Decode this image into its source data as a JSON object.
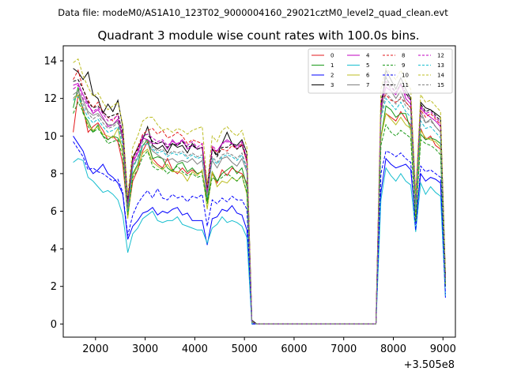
{
  "chart_data": {
    "type": "line",
    "suptitle": "Data file: modeM0/AS1A10_123T02_9000004160_29021cztM0_level2_quad_clean.evt",
    "title": "Quadrant 3 module wise count rates with 100.0s bins.",
    "xlabel": "",
    "ylabel": "",
    "x_offset_label": "+3.505e8",
    "xlim": [
      1350,
      9250
    ],
    "ylim": [
      -0.7,
      14.8
    ],
    "xticks": [
      2000,
      3000,
      4000,
      5000,
      6000,
      7000,
      8000,
      9000
    ],
    "yticks": [
      0,
      2,
      4,
      6,
      8,
      10,
      12,
      14
    ],
    "legend_position": "top-right",
    "x": [
      1550,
      1650,
      1750,
      1850,
      1950,
      2050,
      2150,
      2250,
      2350,
      2450,
      2550,
      2650,
      2750,
      2850,
      2950,
      3050,
      3150,
      3250,
      3350,
      3450,
      3550,
      3650,
      3750,
      3850,
      3950,
      4050,
      4150,
      4250,
      4350,
      4450,
      4550,
      4650,
      4750,
      4850,
      4950,
      5050,
      5150,
      5250,
      7550,
      7650,
      7750,
      7850,
      7950,
      8050,
      8150,
      8250,
      8350,
      8450,
      8550,
      8650,
      8750,
      8850,
      8950,
      9050
    ],
    "series": [
      {
        "name": "0",
        "color": "#e31a1c",
        "dash": "solid",
        "values": [
          10.2,
          12.2,
          11.5,
          10.2,
          10.5,
          10.7,
          10.3,
          9.8,
          10.0,
          9.7,
          8.5,
          5.8,
          7.6,
          8.2,
          9.2,
          9.7,
          8.8,
          8.5,
          8.3,
          8.8,
          8.2,
          8.0,
          8.3,
          8.0,
          8.2,
          8.0,
          8.1,
          6.6,
          8.0,
          7.5,
          8.2,
          7.9,
          8.3,
          8.1,
          8.0,
          7.5,
          0.1,
          0.0,
          0.0,
          0.0,
          10.0,
          11.2,
          11.0,
          10.8,
          11.3,
          10.9,
          10.6,
          5.6,
          10.4,
          9.8,
          10.0,
          9.5,
          9.3,
          2.0
        ]
      },
      {
        "name": "1",
        "color": "#1a9a1a",
        "dash": "solid",
        "values": [
          11.5,
          12.6,
          11.2,
          10.8,
          10.2,
          10.6,
          10.0,
          9.8,
          10.0,
          9.9,
          9.4,
          5.9,
          8.0,
          8.5,
          9.5,
          9.8,
          8.8,
          8.9,
          8.8,
          8.3,
          8.1,
          8.5,
          8.6,
          8.1,
          8.3,
          8.0,
          8.1,
          6.5,
          8.1,
          7.6,
          8.0,
          8.2,
          8.4,
          8.0,
          8.3,
          7.3,
          0.1,
          0.0,
          0.0,
          0.0,
          9.9,
          11.6,
          11.4,
          11.0,
          11.2,
          11.2,
          10.3,
          5.6,
          10.1,
          9.8,
          9.9,
          9.8,
          9.6,
          2.0
        ]
      },
      {
        "name": "2",
        "color": "#0000ff",
        "dash": "solid",
        "values": [
          10.0,
          9.6,
          9.2,
          8.4,
          8.0,
          8.2,
          8.5,
          8.0,
          7.8,
          7.5,
          6.9,
          4.5,
          5.2,
          5.5,
          5.9,
          6.0,
          6.2,
          5.8,
          6.0,
          5.9,
          6.1,
          6.2,
          5.8,
          5.9,
          5.5,
          5.5,
          5.5,
          4.2,
          5.6,
          5.7,
          6.1,
          6.0,
          6.3,
          5.9,
          5.8,
          5.0,
          0.0,
          0.0,
          0.0,
          0.0,
          7.0,
          8.8,
          8.5,
          8.3,
          8.4,
          8.5,
          8.2,
          5.4,
          8.0,
          7.6,
          7.8,
          7.7,
          7.5,
          1.4
        ]
      },
      {
        "name": "3",
        "color": "#000000",
        "dash": "solid",
        "values": [
          13.6,
          13.4,
          13.0,
          13.4,
          12.2,
          12.0,
          11.2,
          11.7,
          11.3,
          11.9,
          10.5,
          6.6,
          8.8,
          9.4,
          9.8,
          10.5,
          9.5,
          9.3,
          9.5,
          9.1,
          9.6,
          9.4,
          9.5,
          9.1,
          9.6,
          9.3,
          9.4,
          7.3,
          9.3,
          9.0,
          9.6,
          10.2,
          9.6,
          9.5,
          9.8,
          9.1,
          0.2,
          0.0,
          0.0,
          0.0,
          11.4,
          13.5,
          13.0,
          12.5,
          13.1,
          12.5,
          12.0,
          6.7,
          11.8,
          11.5,
          11.4,
          11.2,
          11.0,
          2.5
        ]
      },
      {
        "name": "4",
        "color": "#c000c0",
        "dash": "solid",
        "values": [
          12.7,
          12.8,
          12.2,
          11.7,
          11.2,
          11.4,
          11.0,
          10.5,
          10.6,
          10.9,
          9.9,
          6.4,
          8.6,
          9.1,
          9.9,
          9.8,
          9.6,
          9.6,
          9.7,
          9.3,
          9.8,
          9.5,
          9.8,
          9.3,
          9.5,
          9.3,
          9.4,
          7.0,
          9.3,
          9.2,
          9.6,
          9.8,
          9.6,
          9.3,
          9.6,
          8.6,
          0.1,
          0.0,
          0.0,
          0.0,
          11.5,
          12.6,
          12.4,
          12.2,
          12.8,
          12.0,
          11.7,
          6.6,
          11.5,
          11.2,
          11.0,
          10.8,
          10.5,
          2.4
        ]
      },
      {
        "name": "5",
        "color": "#17becf",
        "dash": "solid",
        "values": [
          8.6,
          8.8,
          8.7,
          7.8,
          7.6,
          7.3,
          7.0,
          7.1,
          6.9,
          6.6,
          5.8,
          3.8,
          4.8,
          5.1,
          5.6,
          5.8,
          6.0,
          5.5,
          5.4,
          5.5,
          5.5,
          5.7,
          5.3,
          5.2,
          5.1,
          5.0,
          5.0,
          4.3,
          5.1,
          5.3,
          5.7,
          5.4,
          5.5,
          5.4,
          5.2,
          4.6,
          0.0,
          0.0,
          0.0,
          0.0,
          6.6,
          8.3,
          7.9,
          7.6,
          8.0,
          7.6,
          7.4,
          4.9,
          7.5,
          6.9,
          7.3,
          7.0,
          6.8,
          1.5
        ]
      },
      {
        "name": "6",
        "color": "#bcbd22",
        "dash": "solid",
        "values": [
          11.9,
          12.2,
          11.3,
          10.6,
          10.3,
          10.5,
          10.1,
          10.0,
          9.9,
          10.4,
          9.1,
          5.6,
          7.9,
          8.4,
          9.1,
          9.3,
          8.6,
          8.4,
          8.2,
          8.5,
          8.1,
          8.1,
          8.0,
          7.6,
          8.1,
          7.9,
          8.2,
          6.1,
          8.1,
          7.3,
          7.6,
          7.5,
          7.8,
          7.6,
          7.9,
          6.9,
          0.1,
          0.0,
          0.0,
          0.0,
          9.9,
          11.2,
          10.9,
          10.6,
          11.0,
          10.6,
          10.4,
          5.5,
          10.3,
          9.9,
          9.8,
          9.7,
          9.4,
          2.0
        ]
      },
      {
        "name": "7",
        "color": "#7f7f7f",
        "dash": "solid",
        "values": [
          12.2,
          12.4,
          11.9,
          11.3,
          11.1,
          11.2,
          10.9,
          10.6,
          10.6,
          10.8,
          9.8,
          6.1,
          8.4,
          8.8,
          9.5,
          9.6,
          9.2,
          9.0,
          8.8,
          8.7,
          8.8,
          8.6,
          8.7,
          8.6,
          8.8,
          8.5,
          8.7,
          6.9,
          8.7,
          8.3,
          8.8,
          8.9,
          8.6,
          8.4,
          8.8,
          8.1,
          0.1,
          0.0,
          0.0,
          0.0,
          11.0,
          13.2,
          12.4,
          12.0,
          12.4,
          11.8,
          11.5,
          6.2,
          11.3,
          10.7,
          10.9,
          10.5,
          10.2,
          2.3
        ]
      },
      {
        "name": "8",
        "color": "#e31a1c",
        "dash": "dashed",
        "values": [
          13.0,
          13.5,
          12.5,
          11.9,
          11.5,
          11.8,
          11.3,
          11.0,
          10.8,
          11.2,
          10.1,
          6.3,
          8.8,
          9.4,
          10.1,
          10.3,
          10.4,
          10.1,
          10.3,
          9.9,
          10.0,
          10.2,
          10.0,
          9.6,
          9.8,
          9.7,
          9.6,
          7.1,
          9.4,
          9.1,
          9.3,
          9.2,
          9.5,
          9.3,
          9.6,
          8.6,
          0.1,
          0.0,
          0.0,
          0.0,
          11.9,
          12.2,
          11.9,
          11.8,
          12.0,
          11.8,
          11.5,
          6.4,
          11.4,
          11.0,
          11.2,
          10.9,
          10.6,
          2.4
        ]
      },
      {
        "name": "9",
        "color": "#1a9a1a",
        "dash": "dashed",
        "values": [
          11.2,
          11.8,
          11.3,
          10.5,
          10.2,
          10.4,
          10.0,
          9.6,
          9.7,
          9.8,
          8.9,
          5.8,
          7.8,
          8.2,
          8.9,
          9.2,
          8.4,
          8.2,
          8.3,
          8.0,
          8.2,
          8.4,
          8.1,
          7.9,
          8.0,
          7.8,
          7.9,
          6.4,
          7.8,
          7.6,
          7.8,
          8.0,
          7.8,
          7.6,
          7.9,
          7.0,
          0.1,
          0.0,
          0.0,
          0.0,
          9.5,
          10.6,
          10.2,
          10.0,
          10.3,
          10.1,
          9.9,
          5.4,
          9.8,
          9.6,
          9.5,
          9.3,
          9.0,
          2.0
        ]
      },
      {
        "name": "10",
        "color": "#0000ff",
        "dash": "dashed",
        "values": [
          9.7,
          9.3,
          8.9,
          8.2,
          8.3,
          8.1,
          8.0,
          7.8,
          7.6,
          7.7,
          7.0,
          4.7,
          5.8,
          6.4,
          6.8,
          7.1,
          6.7,
          7.2,
          6.7,
          6.6,
          6.9,
          6.7,
          6.8,
          6.5,
          6.8,
          6.7,
          6.9,
          5.2,
          6.6,
          6.4,
          6.7,
          6.5,
          6.8,
          6.6,
          6.6,
          6.1,
          0.0,
          0.0,
          0.0,
          0.0,
          8.0,
          9.2,
          9.1,
          8.9,
          9.1,
          8.8,
          8.6,
          5.0,
          8.4,
          8.1,
          8.2,
          8.0,
          7.8,
          1.6
        ]
      },
      {
        "name": "11",
        "color": "#000000",
        "dash": "dashed",
        "values": [
          12.9,
          13.0,
          12.5,
          11.8,
          11.5,
          11.6,
          11.3,
          11.0,
          11.1,
          11.2,
          10.1,
          6.4,
          8.9,
          9.3,
          10.0,
          10.1,
          9.7,
          9.6,
          9.7,
          9.4,
          9.6,
          9.5,
          9.7,
          9.4,
          9.5,
          9.3,
          9.4,
          7.1,
          9.3,
          8.9,
          9.4,
          9.4,
          9.6,
          9.3,
          9.5,
          8.8,
          0.1,
          0.0,
          0.0,
          0.0,
          11.8,
          13.1,
          12.7,
          12.3,
          12.8,
          12.3,
          11.9,
          6.6,
          11.7,
          11.3,
          11.4,
          11.1,
          10.8,
          2.5
        ]
      },
      {
        "name": "12",
        "color": "#c000c0",
        "dash": "dashed",
        "values": [
          12.5,
          12.7,
          12.0,
          11.6,
          11.3,
          11.5,
          11.2,
          10.8,
          10.9,
          11.1,
          10.0,
          6.3,
          8.7,
          9.2,
          10.0,
          10.1,
          9.9,
          9.7,
          9.8,
          9.5,
          9.7,
          9.6,
          9.8,
          9.5,
          9.7,
          9.4,
          9.6,
          7.0,
          9.5,
          9.2,
          9.6,
          9.7,
          9.6,
          9.4,
          9.7,
          8.8,
          0.1,
          0.0,
          0.0,
          0.0,
          11.7,
          12.9,
          12.6,
          12.3,
          12.7,
          12.2,
          11.9,
          6.6,
          11.6,
          11.2,
          11.3,
          11.0,
          10.7,
          2.4
        ]
      },
      {
        "name": "13",
        "color": "#17becf",
        "dash": "dashed",
        "values": [
          11.9,
          12.1,
          11.5,
          11.0,
          10.7,
          10.9,
          10.5,
          10.2,
          10.3,
          10.5,
          9.5,
          6.0,
          8.3,
          8.8,
          9.5,
          9.6,
          9.3,
          9.1,
          9.2,
          8.9,
          9.1,
          9.0,
          9.1,
          8.8,
          9.0,
          8.8,
          8.9,
          6.7,
          8.8,
          8.5,
          8.9,
          9.0,
          8.9,
          8.7,
          9.0,
          8.2,
          0.1,
          0.0,
          0.0,
          0.0,
          10.9,
          12.0,
          11.7,
          11.4,
          11.8,
          11.3,
          11.0,
          6.1,
          10.8,
          10.4,
          10.5,
          10.2,
          9.9,
          2.2
        ]
      },
      {
        "name": "14",
        "color": "#bcbd22",
        "dash": "dashed",
        "values": [
          13.9,
          14.1,
          13.2,
          12.6,
          12.1,
          12.3,
          11.8,
          11.4,
          11.6,
          11.8,
          10.6,
          6.8,
          9.4,
          10.0,
          10.8,
          11.0,
          11.0,
          10.6,
          10.3,
          10.4,
          10.2,
          10.4,
          10.3,
          10.1,
          10.3,
          10.4,
          10.5,
          7.4,
          10.0,
          9.7,
          10.3,
          10.5,
          10.2,
          10.0,
          10.3,
          9.4,
          0.1,
          0.0,
          0.0,
          0.0,
          12.5,
          13.6,
          13.3,
          13.0,
          13.5,
          12.9,
          12.5,
          6.9,
          12.2,
          11.8,
          11.9,
          11.6,
          11.3,
          2.7
        ]
      },
      {
        "name": "15",
        "color": "#7f7f7f",
        "dash": "dashed",
        "values": [
          12.0,
          12.3,
          11.7,
          11.2,
          10.9,
          11.1,
          10.7,
          10.4,
          10.5,
          10.7,
          9.7,
          6.1,
          8.5,
          8.9,
          9.7,
          9.8,
          9.4,
          9.2,
          9.3,
          9.0,
          9.2,
          9.1,
          9.2,
          8.9,
          9.1,
          8.9,
          9.0,
          6.8,
          8.9,
          8.6,
          9.0,
          9.1,
          9.0,
          8.8,
          9.1,
          8.3,
          0.1,
          0.0,
          0.0,
          0.0,
          11.1,
          12.3,
          12.0,
          11.7,
          12.1,
          11.6,
          11.3,
          6.2,
          11.1,
          10.7,
          10.8,
          10.5,
          10.2,
          2.3
        ]
      }
    ]
  }
}
